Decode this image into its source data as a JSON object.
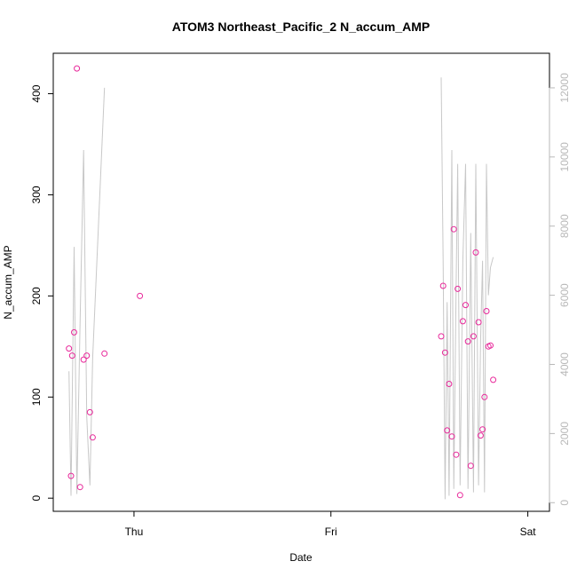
{
  "chart_data": {
    "type": "scatter",
    "title": "ATOM3 Northeast_Pacific_2 N_accum_AMP",
    "xlabel": "Date",
    "ylabel": "N_accum_AMP",
    "x_ticks": [
      "Thu",
      "Fri",
      "Sat"
    ],
    "xlim": [
      -0.205,
      1.055
    ],
    "ylim": [
      -13,
      440
    ],
    "y_ticks": [
      0,
      100,
      200,
      300,
      400
    ],
    "y2lim": [
      -250,
      13000
    ],
    "y2_ticks": [
      0,
      2000,
      4000,
      6000,
      8000,
      10000,
      12000
    ],
    "grid": false,
    "series": [
      {
        "kind": "points",
        "axis": "left",
        "color": "#e8289a",
        "x": [
          -0.165,
          -0.16,
          -0.157,
          -0.152,
          -0.145,
          -0.137,
          -0.128,
          -0.12,
          -0.112,
          -0.105,
          -0.075,
          0.015,
          0.78,
          0.785,
          0.79,
          0.795,
          0.8,
          0.807,
          0.812,
          0.818,
          0.822,
          0.828,
          0.835,
          0.842,
          0.848,
          0.855,
          0.862,
          0.868,
          0.875,
          0.88,
          0.885,
          0.89,
          0.895,
          0.9,
          0.905,
          0.912
        ],
        "y": [
          148,
          22,
          141,
          164,
          425,
          11,
          137,
          141,
          85,
          60,
          143,
          200,
          160,
          210,
          144,
          67,
          113,
          61,
          266,
          43,
          207,
          3,
          175,
          191,
          155,
          32,
          160,
          243,
          174,
          62,
          68,
          100,
          185,
          150,
          151,
          117
        ]
      },
      {
        "kind": "line",
        "axis": "right",
        "color": "#c8c8c8",
        "x": [
          -0.165,
          -0.16,
          -0.152,
          -0.145,
          -0.137,
          -0.128,
          -0.12,
          -0.112,
          -0.105,
          -0.075,
          0.015,
          0.78,
          0.785,
          0.79,
          0.795,
          0.8,
          0.807,
          0.812,
          0.818,
          0.822,
          0.828,
          0.835,
          0.842,
          0.848,
          0.855,
          0.862,
          0.868,
          0.875,
          0.88,
          0.885,
          0.89,
          0.895,
          0.9,
          0.905,
          0.912
        ],
        "y": [
          3800,
          200,
          7400,
          250,
          5200,
          10200,
          2500,
          500,
          4200,
          12000,
          null,
          12300,
          7000,
          100,
          5800,
          200,
          10200,
          400,
          6400,
          9800,
          500,
          7000,
          9800,
          400,
          7800,
          300,
          9800,
          500,
          4700,
          7000,
          300,
          9800,
          6000,
          6800,
          7100
        ]
      }
    ]
  }
}
